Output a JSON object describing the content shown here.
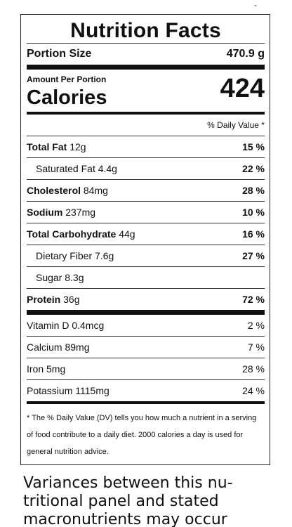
{
  "corner_mark": "-",
  "label": {
    "title": "Nutrition Facts",
    "portion": {
      "label": "Portion Size",
      "value": "470.9 g"
    },
    "amount_per_portion": "Amount Per Portion",
    "calories": {
      "label": "Calories",
      "value": "424"
    },
    "dv_header": "% Daily Value *",
    "nutrients": [
      {
        "name": "Total Fat",
        "amount": "12g",
        "dv": "15 %"
      },
      {
        "name": "Saturated Fat",
        "amount": "4.4g",
        "dv": "22 %"
      },
      {
        "name": "Cholesterol",
        "amount": "84mg",
        "dv": "28 %"
      },
      {
        "name": "Sodium",
        "amount": "237mg",
        "dv": "10 %"
      },
      {
        "name": "Total Carbohydrate",
        "amount": "44g",
        "dv": "16 %"
      },
      {
        "name": "Dietary Fiber",
        "amount": "7.6g",
        "dv": "27 %"
      },
      {
        "name": "Sugar",
        "amount": "8.3g",
        "dv": ""
      },
      {
        "name": "Protein",
        "amount": "36g",
        "dv": "72 %"
      }
    ],
    "vitamins": [
      {
        "name": "Vitamin D",
        "amount": "0.4mcg",
        "dv": "2 %"
      },
      {
        "name": "Calcium",
        "amount": "89mg",
        "dv": "7 %"
      },
      {
        "name": "Iron",
        "amount": "5mg",
        "dv": "28 %"
      },
      {
        "name": "Potassium",
        "amount": "1115mg",
        "dv": "24 %"
      }
    ],
    "footnote": "* The % Daily Value (DV) tells you how much a nutrient in a serving of food contribute to a daily diet. 2000 calories a day is used for general nutrition advice."
  },
  "bottom_text": "Variances between this nu-tritional panel and stated macronutrients may occur"
}
